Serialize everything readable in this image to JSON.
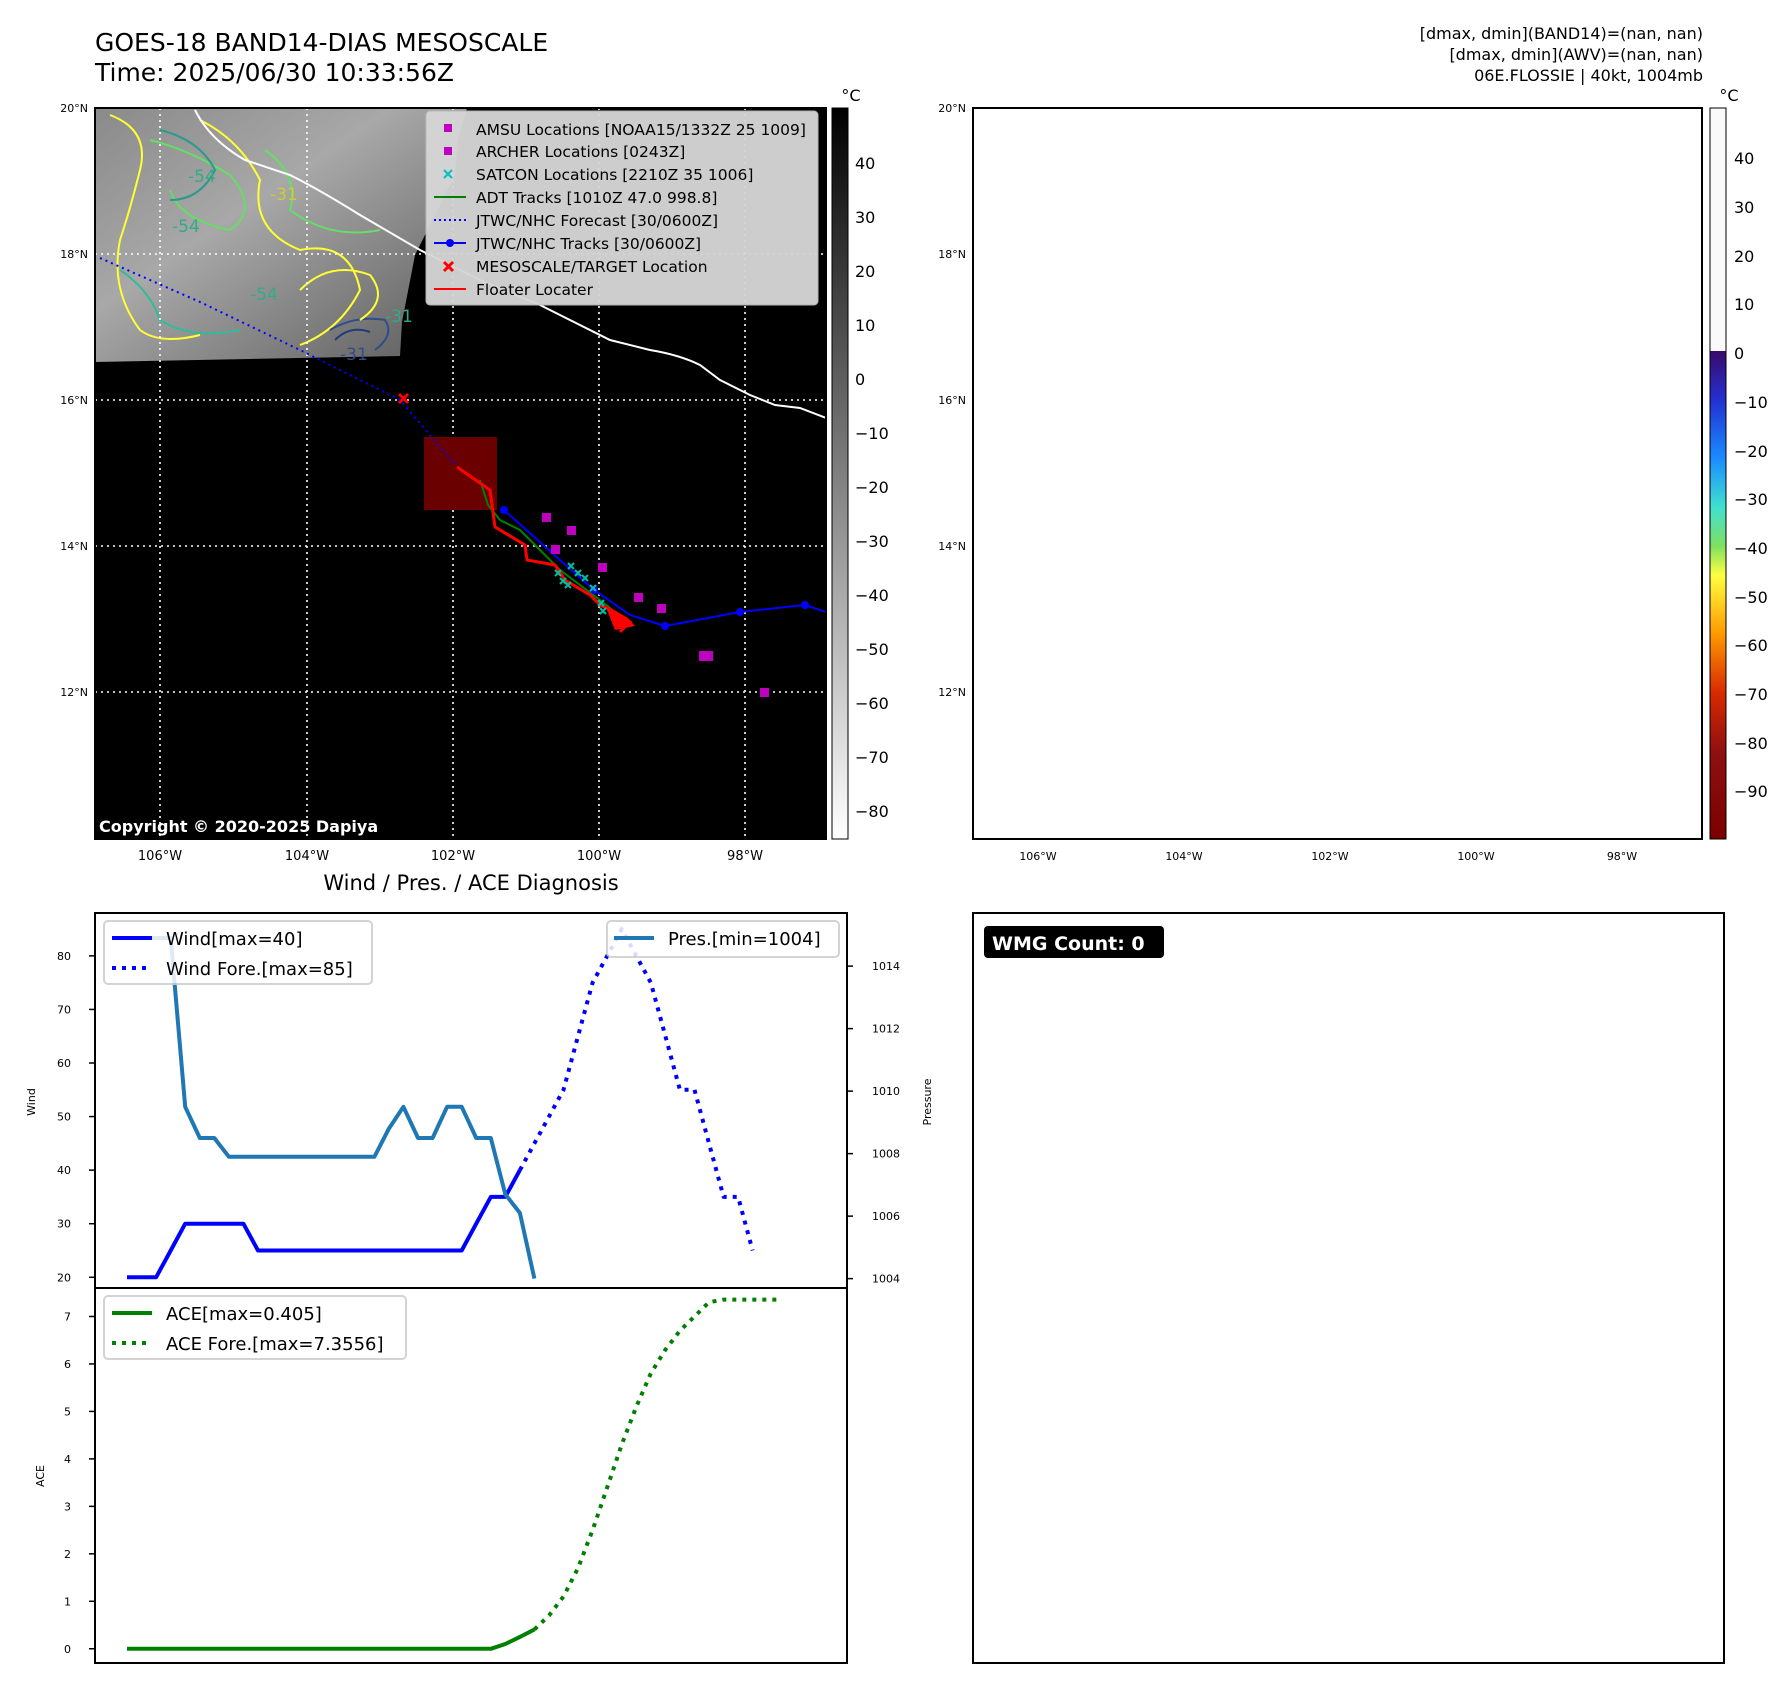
{
  "header": {
    "title_line1": "GOES-18 BAND14-DIAS MESOSCALE",
    "title_line2": "Time: 2025/06/30 10:33:56Z",
    "info_line1": "[dmax, dmin](BAND14)=(nan, nan)",
    "info_line2": "[dmax, dmin](AWV)=(nan, nan)",
    "info_line3": "06E.FLOSSIE | 40kt, 1004mb"
  },
  "map_left": {
    "lat_ticks": [
      "20°N",
      "18°N",
      "16°N",
      "14°N",
      "12°N"
    ],
    "lon_ticks": [
      "106°W",
      "104°W",
      "102°W",
      "100°W",
      "98°W"
    ],
    "copyright": "Copyright © 2020-2025 Dapiya",
    "colorbar_unit": "°C",
    "colorbar_ticks": [
      "40",
      "30",
      "20",
      "10",
      "0",
      "−10",
      "−20",
      "−30",
      "−40",
      "−50",
      "−60",
      "−70",
      "−80"
    ],
    "contour_labels": [
      "-54",
      "-54",
      "-31",
      "-31",
      "-54",
      "-31"
    ],
    "legend": [
      {
        "label": "AMSU Locations [NOAA15/1332Z 25 1009]",
        "marker": "square",
        "color": "#bf00bf"
      },
      {
        "label": "ARCHER Locations [0243Z]",
        "marker": "square",
        "color": "#bf00bf"
      },
      {
        "label": "SATCON Locations [2210Z 35 1006]",
        "marker": "x",
        "color": "#00bfbf"
      },
      {
        "label": "ADT Tracks [1010Z 47.0 998.8]",
        "marker": "line",
        "color": "#008000"
      },
      {
        "label": "JTWC/NHC Forecast [30/0600Z]",
        "marker": "dotted",
        "color": "#0000ff"
      },
      {
        "label": "JTWC/NHC Tracks [30/0600Z]",
        "marker": "line-dot",
        "color": "#0000ff"
      },
      {
        "label": "MESOSCALE/TARGET Location",
        "marker": "x",
        "color": "#ff0000"
      },
      {
        "label": "Floater Locater",
        "marker": "line",
        "color": "#ff0000"
      }
    ]
  },
  "map_right": {
    "lat_ticks": [
      "20°N",
      "18°N",
      "16°N",
      "14°N",
      "12°N"
    ],
    "lon_ticks": [
      "106°W",
      "104°W",
      "102°W",
      "100°W",
      "98°W"
    ],
    "colorbar_unit": "°C",
    "colorbar_ticks": [
      "40",
      "30",
      "20",
      "10",
      "0",
      "−10",
      "−20",
      "−30",
      "−40",
      "−50",
      "−60",
      "−70",
      "−80",
      "−90"
    ]
  },
  "wmg": {
    "label": "WMG Count: 0"
  },
  "chart_data": [
    {
      "type": "line",
      "title": "Wind / Pres. / ACE Diagnosis",
      "ylabel": "Wind",
      "y2label": "Pressure",
      "ylim": [
        18,
        88
      ],
      "y2lim": [
        1003.7,
        1015.7
      ],
      "yticks": [
        20,
        30,
        40,
        50,
        60,
        70,
        80
      ],
      "y2ticks": [
        1004,
        1006,
        1008,
        1010,
        1012,
        1014
      ],
      "series": [
        {
          "name": "Wind[max=40]",
          "axis": "left",
          "style": "solid",
          "color": "#0000ff",
          "values": [
            20,
            20,
            20,
            25,
            30,
            30,
            30,
            30,
            30,
            25,
            25,
            25,
            25,
            25,
            25,
            25,
            25,
            25,
            25,
            25,
            25,
            25,
            25,
            25,
            30,
            35,
            35,
            40
          ]
        },
        {
          "name": "Wind Fore.[max=85]",
          "axis": "left",
          "style": "dotted",
          "color": "#0000ff",
          "x_start": 27,
          "values": [
            40,
            45,
            50,
            55,
            65,
            75,
            80,
            85,
            80,
            75,
            65,
            55,
            55,
            45,
            35,
            35,
            25
          ]
        },
        {
          "name": "Pres.[min=1004]",
          "axis": "right",
          "style": "solid",
          "color": "#1f77b4",
          "values": [
            1014.9,
            1014.9,
            1014.9,
            1014.9,
            1009.5,
            1008.5,
            1008.5,
            1007.9,
            1007.9,
            1007.9,
            1007.9,
            1007.9,
            1007.9,
            1007.9,
            1007.9,
            1007.9,
            1007.9,
            1007.9,
            1008.8,
            1009.5,
            1008.5,
            1008.5,
            1009.5,
            1009.5,
            1008.5,
            1008.5,
            1006.7,
            1006.1,
            1004
          ]
        }
      ]
    },
    {
      "type": "line",
      "ylabel": "ACE",
      "ylim": [
        -0.3,
        7.6
      ],
      "yticks": [
        0,
        1,
        2,
        3,
        4,
        5,
        6,
        7
      ],
      "series": [
        {
          "name": "ACE[max=0.405]",
          "style": "solid",
          "color": "#008000",
          "values": [
            0,
            0,
            0,
            0,
            0,
            0,
            0,
            0,
            0,
            0,
            0,
            0,
            0,
            0,
            0,
            0,
            0,
            0,
            0,
            0,
            0,
            0,
            0,
            0,
            0,
            0,
            0.1,
            0.25,
            0.405
          ]
        },
        {
          "name": "ACE Fore.[max=7.3556]",
          "style": "dotted",
          "color": "#008000",
          "x_start": 28,
          "values": [
            0.405,
            0.7,
            1.1,
            1.7,
            2.5,
            3.4,
            4.3,
            5.1,
            5.8,
            6.3,
            6.7,
            7.0,
            7.3,
            7.3556,
            7.3556,
            7.3556,
            7.3556,
            7.3556
          ]
        }
      ]
    }
  ]
}
